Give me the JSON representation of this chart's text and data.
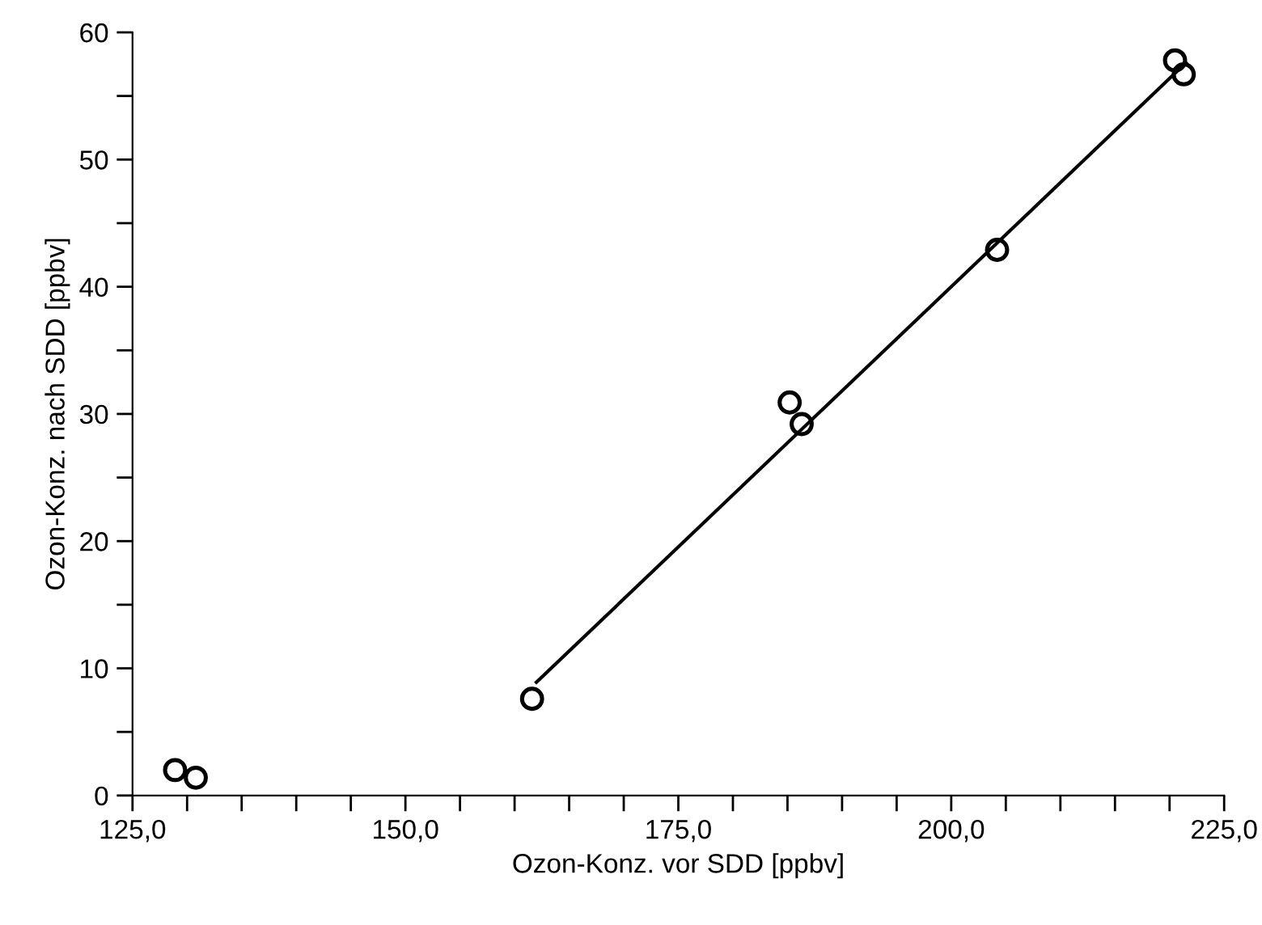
{
  "chart_data": {
    "type": "scatter",
    "xlabel": "Ozon-Konz. vor SDD [ppbv]",
    "ylabel": "Ozon-Konz. nach SDD [ppbv]",
    "xlim": [
      125,
      225
    ],
    "ylim": [
      0,
      60
    ],
    "xticks": [
      {
        "value": 125,
        "label": "125,0"
      },
      {
        "value": 130,
        "label": null
      },
      {
        "value": 135,
        "label": null
      },
      {
        "value": 140,
        "label": null
      },
      {
        "value": 145,
        "label": null
      },
      {
        "value": 150,
        "label": "150,0"
      },
      {
        "value": 155,
        "label": null
      },
      {
        "value": 160,
        "label": null
      },
      {
        "value": 165,
        "label": null
      },
      {
        "value": 170,
        "label": null
      },
      {
        "value": 175,
        "label": "175,0"
      },
      {
        "value": 180,
        "label": null
      },
      {
        "value": 185,
        "label": null
      },
      {
        "value": 190,
        "label": null
      },
      {
        "value": 195,
        "label": null
      },
      {
        "value": 200,
        "label": "200,0"
      },
      {
        "value": 205,
        "label": null
      },
      {
        "value": 210,
        "label": null
      },
      {
        "value": 215,
        "label": null
      },
      {
        "value": 220,
        "label": null
      },
      {
        "value": 225,
        "label": "225,0"
      }
    ],
    "yticks": [
      0,
      {
        "value": 5,
        "label": null
      },
      10,
      {
        "value": 15,
        "label": null
      },
      20,
      {
        "value": 25,
        "label": null
      },
      30,
      {
        "value": 35,
        "label": null
      },
      40,
      {
        "value": 45,
        "label": null
      },
      50,
      {
        "value": 55,
        "label": null
      },
      60
    ],
    "grid": false,
    "legend": false,
    "marker": "circle",
    "series": [
      {
        "color": "#000000",
        "x": [
          128.9,
          130.8,
          161.6,
          185.2,
          186.3,
          204.2,
          220.5,
          221.3
        ],
        "values": [
          2.0,
          1.4,
          7.6,
          30.9,
          29.2,
          42.9,
          57.8,
          56.7
        ]
      },
      {
        "type": "line",
        "color": "#000000",
        "x": [
          162,
          221.5
        ],
        "values": [
          8.9,
          57.6
        ],
        "marker": "none",
        "line_style": "solid"
      }
    ]
  }
}
